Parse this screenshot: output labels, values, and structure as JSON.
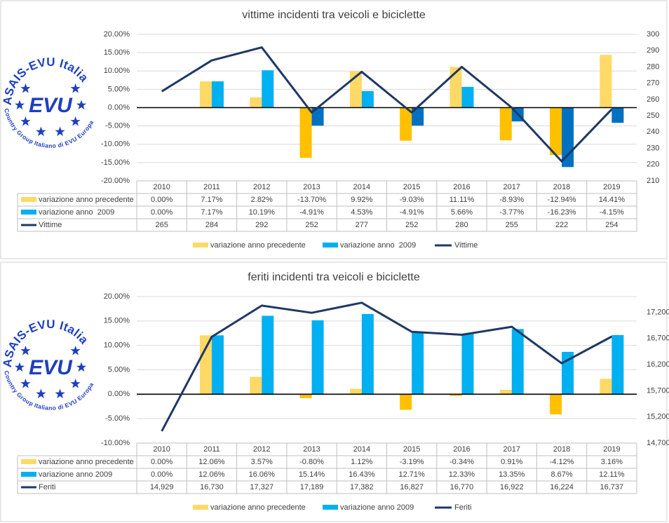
{
  "logo": {
    "arc_text": "ASAIS-EVU Italia",
    "center": "EVU",
    "subtitle": "Country Group Italiano di EVU Europa"
  },
  "chart_data": [
    {
      "type": "combo",
      "title": "vittime incidenti tra veicoli e biciclette",
      "categories": [
        "2010",
        "2011",
        "2012",
        "2013",
        "2014",
        "2015",
        "2016",
        "2017",
        "2018",
        "2019"
      ],
      "series": [
        {
          "name": "variazione anno precedente",
          "type": "bar",
          "color": "#ffd966",
          "negative_color": "#ffc000",
          "values": [
            0,
            7.17,
            2.82,
            -13.7,
            9.92,
            -9.03,
            11.11,
            -8.93,
            -12.94,
            14.41
          ],
          "value_labels": [
            "0.00%",
            "7.17%",
            "2.82%",
            "-13.70%",
            "9.92%",
            "-9.03%",
            "11.11%",
            "-8.93%",
            "-12.94%",
            "14.41%"
          ]
        },
        {
          "name": "variazione anno  2009",
          "type": "bar",
          "color": "#00b0f0",
          "negative_color": "#0070c0",
          "values": [
            0,
            7.17,
            10.19,
            -4.91,
            4.53,
            -4.91,
            5.66,
            -3.77,
            -16.23,
            -4.15
          ],
          "value_labels": [
            "0.00%",
            "7.17%",
            "10.19%",
            "-4.91%",
            "4.53%",
            "-4.91%",
            "5.66%",
            "-3.77%",
            "-16.23%",
            "-4.15%"
          ]
        },
        {
          "name": "Vittime",
          "type": "line",
          "axis": "y2",
          "color": "#1f3864",
          "values": [
            265,
            284,
            292,
            252,
            277,
            252,
            280,
            255,
            222,
            254
          ]
        }
      ],
      "ylim": [
        -20,
        20
      ],
      "yticks": [
        {
          "value": -20,
          "label": "-20.00%"
        },
        {
          "value": -15,
          "label": "-15.00%"
        },
        {
          "value": -10,
          "label": "-10.00%"
        },
        {
          "value": -5,
          "label": "-5.00%"
        },
        {
          "value": 0,
          "label": "0.00%"
        },
        {
          "value": 5,
          "label": "5.00%"
        },
        {
          "value": 10,
          "label": "10.00%"
        },
        {
          "value": 15,
          "label": "15.00%"
        },
        {
          "value": 20,
          "label": "20.00%"
        }
      ],
      "y2lim": [
        210,
        300
      ],
      "y2ticks": [
        210,
        220,
        230,
        240,
        250,
        260,
        270,
        280,
        290,
        300
      ],
      "grid": true
    },
    {
      "type": "combo",
      "title": "feriti incidenti tra veicoli e biciclette",
      "categories": [
        "2010",
        "2011",
        "2012",
        "2013",
        "2014",
        "2015",
        "2016",
        "2017",
        "2018",
        "2019"
      ],
      "series": [
        {
          "name": "variazione anno precedente",
          "type": "bar",
          "color": "#ffd966",
          "negative_color": "#ffc000",
          "values": [
            0,
            12.06,
            3.57,
            -0.8,
            1.12,
            -3.19,
            -0.34,
            0.91,
            -4.12,
            3.16
          ],
          "value_labels": [
            "0.00%",
            "12.06%",
            "3.57%",
            "-0.80%",
            "1.12%",
            "-3.19%",
            "-0.34%",
            "0.91%",
            "-4.12%",
            "3.16%"
          ]
        },
        {
          "name": "variazione anno 2009",
          "type": "bar",
          "color": "#00b0f0",
          "values": [
            0,
            12.06,
            16.06,
            15.14,
            16.43,
            12.71,
            12.33,
            13.35,
            8.67,
            12.11
          ],
          "value_labels": [
            "0.00%",
            "12.06%",
            "16.06%",
            "15.14%",
            "16.43%",
            "12.71%",
            "12.33%",
            "13.35%",
            "8.67%",
            "12.11%"
          ]
        },
        {
          "name": "Feriti",
          "type": "line",
          "axis": "y2",
          "color": "#1f3864",
          "values": [
            14929,
            16730,
            17327,
            17189,
            17382,
            16827,
            16770,
            16922,
            16224,
            16737
          ],
          "value_labels": [
            "14,929",
            "16,730",
            "17,327",
            "17,189",
            "17,382",
            "16,827",
            "16,770",
            "16,922",
            "16,224",
            "16,737"
          ]
        }
      ],
      "ylim": [
        -10,
        20
      ],
      "yticks": [
        {
          "value": -10,
          "label": "-10.00%"
        },
        {
          "value": -5,
          "label": "-5.00%"
        },
        {
          "value": 0,
          "label": "0.00%"
        },
        {
          "value": 5,
          "label": "5.00%"
        },
        {
          "value": 10,
          "label": "10.00%"
        },
        {
          "value": 15,
          "label": "15.00%"
        },
        {
          "value": 20,
          "label": "20.00%"
        }
      ],
      "y2lim": [
        14700,
        17500
      ],
      "y2ticks": [
        {
          "value": 14700,
          "label": "14,700"
        },
        {
          "value": 15200,
          "label": "15,200"
        },
        {
          "value": 15700,
          "label": "15,700"
        },
        {
          "value": 16200,
          "label": "16,200"
        },
        {
          "value": 16700,
          "label": "16,700"
        },
        {
          "value": 17200,
          "label": "17,200"
        }
      ],
      "grid": true
    }
  ]
}
